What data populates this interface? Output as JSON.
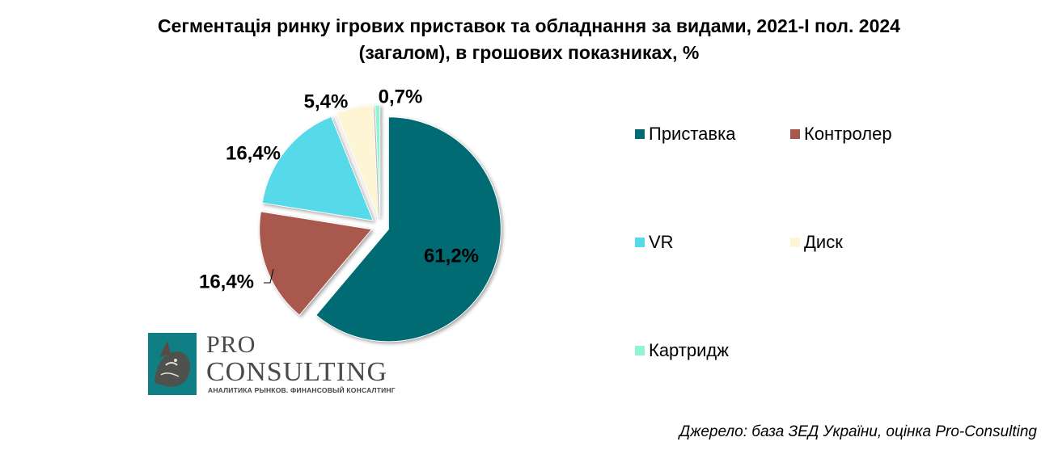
{
  "chart_data": {
    "type": "pie",
    "title": "Сегментація ринку ігрових приставок та обладнання за видами, 2021-І пол. 2024 (загалом), в грошових показниках, %",
    "title_lines": [
      "Сегментація ринку ігрових приставок та обладнання за видами, 2021-І пол. 2024",
      "(загалом), в грошових показниках, %"
    ],
    "slices": [
      {
        "label": "Приставка",
        "value": 61.2,
        "display": "61,2%",
        "color": "#006b73"
      },
      {
        "label": "Контролер",
        "value": 16.4,
        "display": "16,4%",
        "color": "#a9584e"
      },
      {
        "label": "VR",
        "value": 16.4,
        "display": "16,4%",
        "color": "#56d9e9"
      },
      {
        "label": "Диск",
        "value": 5.4,
        "display": "5,4%",
        "color": "#fdf5d3"
      },
      {
        "label": "Картридж",
        "value": 0.7,
        "display": "0,7%",
        "color": "#8ff5d2"
      }
    ],
    "legend": {
      "placement": "right",
      "items": [
        "Приставка",
        "Контролер",
        "VR",
        "Диск",
        "Картридж"
      ]
    },
    "exploded": true
  },
  "logo": {
    "line1": "PRO",
    "line2": "CONSULTING",
    "tagline": "АНАЛИТИКА РЫНКОВ. ФИНАНСОВЫЙ КОНСАЛТИНГ"
  },
  "source": "Джерело: база ЗЕД України, оцінка Pro-Consulting"
}
